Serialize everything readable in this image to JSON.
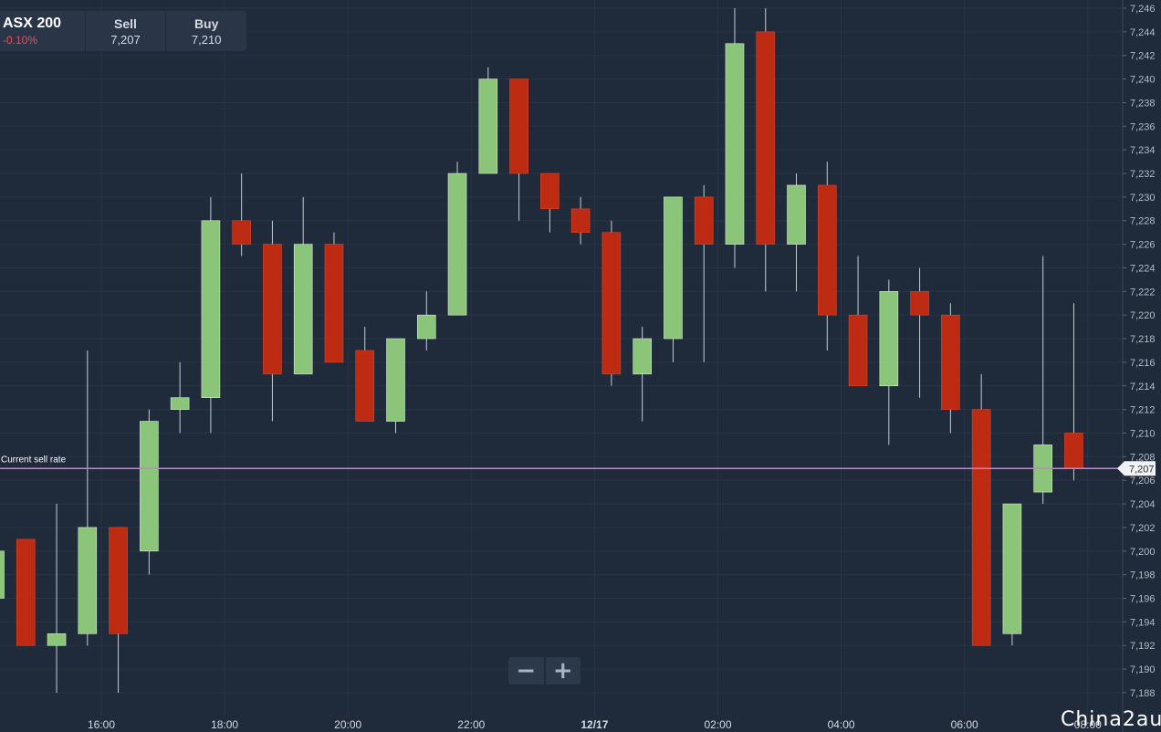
{
  "instrument": {
    "name": "ASX 200",
    "change": "-0.10%",
    "sell_label": "Sell",
    "sell_value": "7,207",
    "buy_label": "Buy",
    "buy_value": "7,210"
  },
  "current_rate": {
    "label": "Current sell rate",
    "value_label": "7,207",
    "value": 7207
  },
  "zoom": {
    "out_label": "−",
    "in_label": "+"
  },
  "watermark": "China2au",
  "chart_data": {
    "type": "candlestick",
    "title": "",
    "xlabel": "",
    "ylabel": "",
    "ylim": [
      7186,
      7246
    ],
    "y_ticks": [
      7188,
      7190,
      7192,
      7194,
      7196,
      7198,
      7200,
      7202,
      7204,
      7206,
      7208,
      7210,
      7212,
      7214,
      7216,
      7218,
      7220,
      7222,
      7224,
      7226,
      7228,
      7230,
      7232,
      7234,
      7236,
      7238,
      7240,
      7242,
      7244,
      7246
    ],
    "x_ticks": [
      "16:00",
      "18:00",
      "20:00",
      "22:00",
      "12/17",
      "02:00",
      "04:00",
      "06:00",
      "08:00"
    ],
    "grid": true,
    "up_color": "#8bc57a",
    "down_color": "#bd2b13",
    "current_line_color": "#d37ad6",
    "candles": [
      {
        "o": 7196,
        "h": 7200,
        "l": 7196,
        "c": 7200
      },
      {
        "o": 7201,
        "h": 7201,
        "l": 7192,
        "c": 7192
      },
      {
        "o": 7192,
        "h": 7204,
        "l": 7188,
        "c": 7193
      },
      {
        "o": 7193,
        "h": 7217,
        "l": 7192,
        "c": 7202
      },
      {
        "o": 7202,
        "h": 7202,
        "l": 7188,
        "c": 7193
      },
      {
        "o": 7200,
        "h": 7212,
        "l": 7198,
        "c": 7211
      },
      {
        "o": 7212,
        "h": 7216,
        "l": 7210,
        "c": 7213
      },
      {
        "o": 7213,
        "h": 7230,
        "l": 7210,
        "c": 7228
      },
      {
        "o": 7228,
        "h": 7232,
        "l": 7225,
        "c": 7226
      },
      {
        "o": 7226,
        "h": 7228,
        "l": 7211,
        "c": 7215
      },
      {
        "o": 7215,
        "h": 7230,
        "l": 7215,
        "c": 7226
      },
      {
        "o": 7226,
        "h": 7227,
        "l": 7216,
        "c": 7216
      },
      {
        "o": 7217,
        "h": 7219,
        "l": 7211,
        "c": 7211
      },
      {
        "o": 7211,
        "h": 7218,
        "l": 7210,
        "c": 7218
      },
      {
        "o": 7218,
        "h": 7222,
        "l": 7217,
        "c": 7220
      },
      {
        "o": 7220,
        "h": 7233,
        "l": 7220,
        "c": 7232
      },
      {
        "o": 7232,
        "h": 7241,
        "l": 7232,
        "c": 7240
      },
      {
        "o": 7240,
        "h": 7240,
        "l": 7228,
        "c": 7232
      },
      {
        "o": 7232,
        "h": 7232,
        "l": 7227,
        "c": 7229
      },
      {
        "o": 7229,
        "h": 7230,
        "l": 7226,
        "c": 7227
      },
      {
        "o": 7227,
        "h": 7228,
        "l": 7214,
        "c": 7215
      },
      {
        "o": 7215,
        "h": 7219,
        "l": 7211,
        "c": 7218
      },
      {
        "o": 7218,
        "h": 7230,
        "l": 7216,
        "c": 7230
      },
      {
        "o": 7230,
        "h": 7231,
        "l": 7216,
        "c": 7226
      },
      {
        "o": 7226,
        "h": 7246,
        "l": 7224,
        "c": 7243
      },
      {
        "o": 7244,
        "h": 7246,
        "l": 7222,
        "c": 7226
      },
      {
        "o": 7226,
        "h": 7232,
        "l": 7222,
        "c": 7231
      },
      {
        "o": 7231,
        "h": 7233,
        "l": 7217,
        "c": 7220
      },
      {
        "o": 7220,
        "h": 7225,
        "l": 7214,
        "c": 7214
      },
      {
        "o": 7214,
        "h": 7223,
        "l": 7209,
        "c": 7222
      },
      {
        "o": 7222,
        "h": 7224,
        "l": 7213,
        "c": 7220
      },
      {
        "o": 7220,
        "h": 7221,
        "l": 7210,
        "c": 7212
      },
      {
        "o": 7212,
        "h": 7215,
        "l": 7192,
        "c": 7192
      },
      {
        "o": 7193,
        "h": 7204,
        "l": 7192,
        "c": 7204
      },
      {
        "o": 7205,
        "h": 7225,
        "l": 7204,
        "c": 7209
      },
      {
        "o": 7210,
        "h": 7221,
        "l": 7206,
        "c": 7207
      }
    ]
  }
}
